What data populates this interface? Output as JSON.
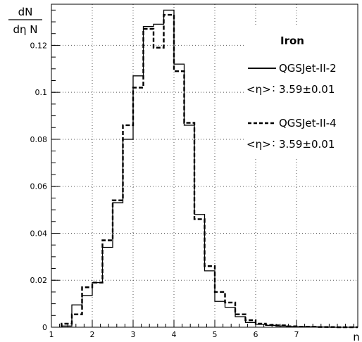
{
  "chart_data": {
    "type": "step",
    "ylabel": {
      "numerator": "dN",
      "denominator": "dη N"
    },
    "xlabel": "n",
    "xlim": [
      1,
      8.5
    ],
    "ylim": [
      0,
      0.1375
    ],
    "xticks": [
      1,
      2,
      3,
      4,
      5,
      6,
      7
    ],
    "yticks": [
      0,
      0.02,
      0.04,
      0.06,
      0.08,
      0.1,
      0.12
    ],
    "ytick_labels": [
      "0",
      "0.02",
      "0.04",
      "0.06",
      "0.08",
      "0.1",
      "0.12"
    ],
    "grid": true,
    "bin_edges": [
      1.25,
      1.5,
      1.75,
      2.0,
      2.25,
      2.5,
      2.75,
      3.0,
      3.25,
      3.5,
      3.75,
      4.0,
      4.25,
      4.5,
      4.75,
      5.0,
      5.25,
      5.5,
      5.75,
      6.0,
      6.25,
      6.5,
      6.75,
      7.0,
      7.25,
      7.5,
      7.75,
      8.0,
      8.25,
      8.5
    ],
    "legend": {
      "title": "Iron",
      "placement": "top-right",
      "eta_label": "<η>",
      "separator": ":"
    },
    "series": [
      {
        "name": "QGSJet-II-2",
        "style": "solid",
        "mean": "3.59±0.01",
        "values": [
          0.0005,
          0.0095,
          0.0135,
          0.019,
          0.034,
          0.053,
          0.08,
          0.107,
          0.128,
          0.129,
          0.135,
          0.112,
          0.086,
          0.048,
          0.024,
          0.011,
          0.0085,
          0.0045,
          0.002,
          0.0012,
          0.0008,
          0.0005,
          0.0003,
          0.0002,
          0.0002,
          0.0001,
          0.0,
          0.0,
          0.0
        ]
      },
      {
        "name": "QGSJet-II-4",
        "style": "dashed",
        "mean": "3.59±0.01",
        "values": [
          0.0015,
          0.0055,
          0.017,
          0.019,
          0.037,
          0.054,
          0.086,
          0.102,
          0.127,
          0.119,
          0.133,
          0.109,
          0.087,
          0.046,
          0.026,
          0.015,
          0.0105,
          0.0055,
          0.003,
          0.0015,
          0.001,
          0.0008,
          0.0004,
          0.0002,
          0.0002,
          0.0001,
          0.0001,
          0.0,
          0.0
        ]
      }
    ]
  }
}
